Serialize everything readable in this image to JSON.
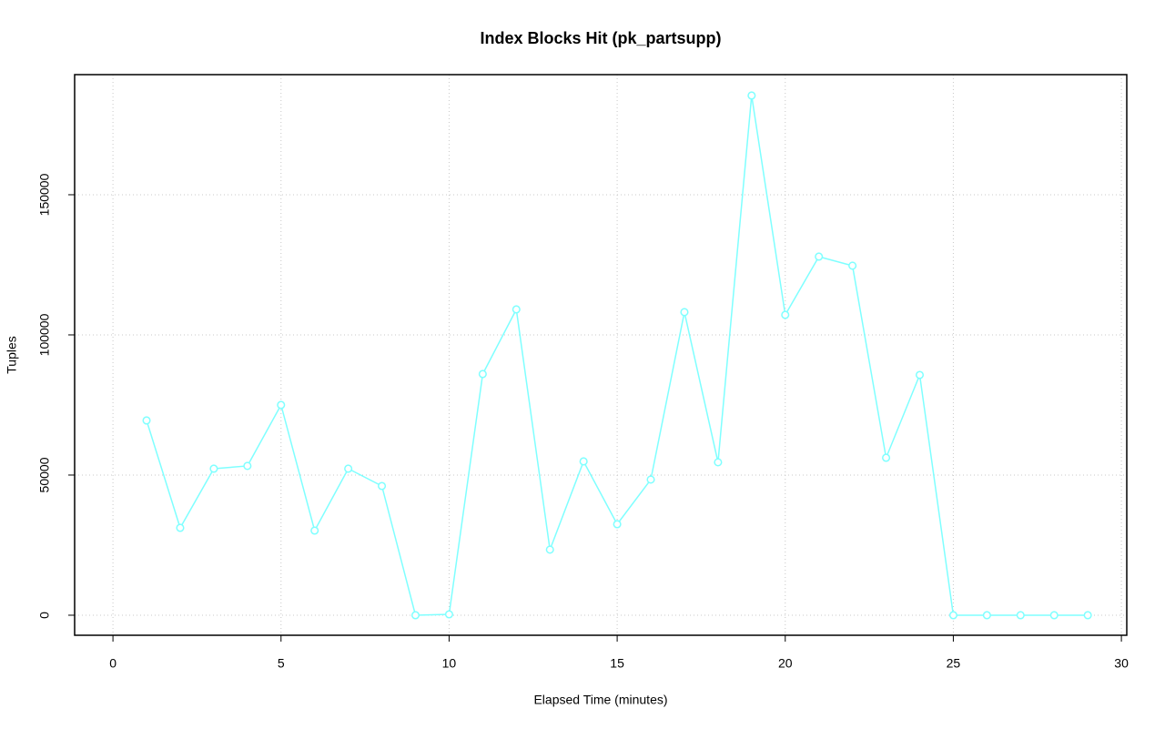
{
  "chart_data": {
    "type": "line",
    "title": "Index Blocks Hit (pk_partsupp)",
    "x_label": "Elapsed Time (minutes)",
    "y_label": "Tuples",
    "x": [
      1,
      2,
      3,
      4,
      5,
      6,
      7,
      8,
      9,
      10,
      11,
      12,
      13,
      14,
      15,
      16,
      17,
      18,
      19,
      20,
      21,
      22,
      23,
      24,
      25,
      26,
      27,
      28,
      29
    ],
    "series": [
      {
        "color": "#7fffff",
        "values": [
          69480,
          31170,
          52270,
          53250,
          75000,
          30190,
          52270,
          46100,
          0,
          320,
          86040,
          109090,
          23380,
          54870,
          32470,
          48380,
          108120,
          54550,
          185390,
          107140,
          127920,
          124680,
          56170,
          85710,
          0,
          0,
          0,
          0,
          0
        ]
      }
    ],
    "xlim": [
      -1.14,
      30.16
    ],
    "xticks": [
      0,
      5,
      10,
      15,
      20,
      25,
      30
    ],
    "ylim": [
      -7150,
      192850
    ],
    "yticks": [
      0,
      50000,
      100000,
      150000
    ],
    "grid": true
  }
}
